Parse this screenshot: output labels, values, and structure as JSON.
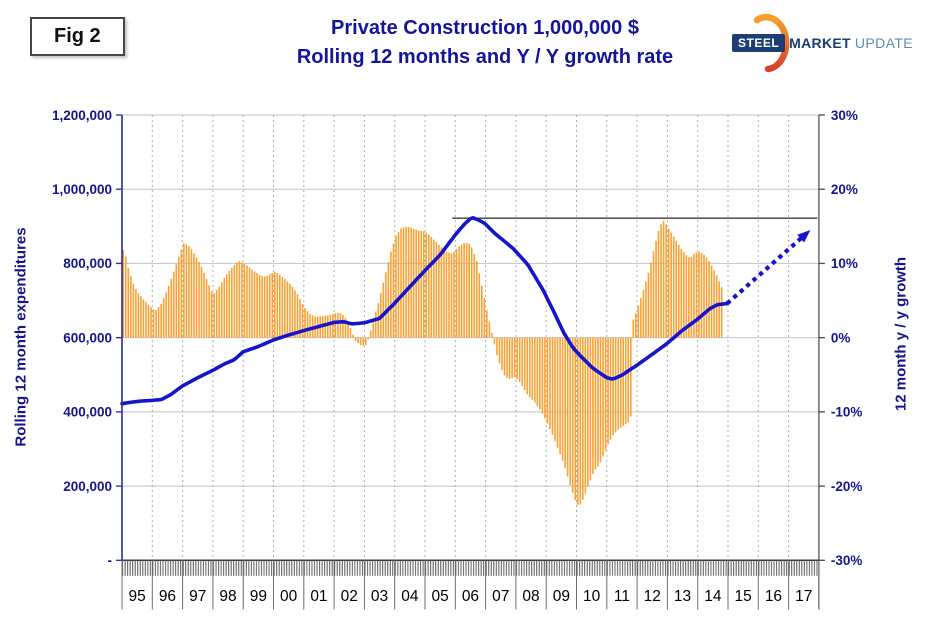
{
  "figure_label": "Fig 2",
  "header": {
    "title_line1": "Private Construction 1,000,000 $",
    "title_line2": "Rolling 12 months and Y / Y growth rate"
  },
  "logo": {
    "steel": "STEEL",
    "market": "MARKET",
    "update": "UPDATE"
  },
  "chart_data": {
    "type": "bar",
    "subtype": "monthly bars (y/y growth, right axis) + rolling-12-month line (left axis) + dotted projection arrow",
    "title": "Private Construction 1,000,000 $ — Rolling 12 months and Y / Y growth rate",
    "left_axis": {
      "label": "Rolling 12 month expenditures",
      "tick_labels": [
        "1,200,000",
        "1,000,000",
        "800,000",
        "600,000",
        "400,000",
        "200,000",
        "-"
      ],
      "tick_values": [
        1200000,
        1000000,
        800000,
        600000,
        400000,
        200000,
        0
      ],
      "range": [
        0,
        1200000
      ],
      "gridlines": true
    },
    "right_axis": {
      "label": "12 month y / y growth",
      "tick_labels": [
        "30%",
        "20%",
        "10%",
        "0%",
        "-10%",
        "-20%",
        "-30%"
      ],
      "tick_values": [
        30,
        20,
        10,
        0,
        -10,
        -20,
        -30
      ],
      "range": [
        -30,
        30
      ]
    },
    "x_axis": {
      "year_labels": [
        "95",
        "96",
        "97",
        "98",
        "99",
        "00",
        "01",
        "02",
        "03",
        "04",
        "05",
        "06",
        "07",
        "08",
        "09",
        "10",
        "11",
        "12",
        "13",
        "14",
        "15",
        "16",
        "17"
      ],
      "range_years": [
        1995,
        2018
      ],
      "monthly_minor_ticks": true,
      "yearly_dashed_gridlines": true
    },
    "series": {
      "yoy_growth_bars": {
        "name": "Y / Y growth rate",
        "type": "bar",
        "axis": "right",
        "unit": "%",
        "color": "#F8A234",
        "note": "monthly bars Jan-1995 through late-2014; values interpolated from anchor_points [year, percent]",
        "anchor_points": [
          [
            1995.04,
            11.8
          ],
          [
            1995.1,
            11.4
          ],
          [
            1995.2,
            9.5
          ],
          [
            1995.35,
            7.5
          ],
          [
            1995.5,
            6.2
          ],
          [
            1995.7,
            5.2
          ],
          [
            1995.9,
            4.3
          ],
          [
            1996.1,
            3.6
          ],
          [
            1996.3,
            4.6
          ],
          [
            1996.5,
            6.5
          ],
          [
            1996.7,
            8.8
          ],
          [
            1996.9,
            11.2
          ],
          [
            1997.05,
            12.8
          ],
          [
            1997.25,
            12.2
          ],
          [
            1997.4,
            11.2
          ],
          [
            1997.6,
            9.8
          ],
          [
            1997.8,
            7.8
          ],
          [
            1998.0,
            5.8
          ],
          [
            1998.2,
            6.8
          ],
          [
            1998.4,
            8.2
          ],
          [
            1998.6,
            9.3
          ],
          [
            1998.85,
            10.4
          ],
          [
            1999.1,
            9.8
          ],
          [
            1999.35,
            9.0
          ],
          [
            1999.6,
            8.3
          ],
          [
            1999.75,
            8.2
          ],
          [
            1999.9,
            8.6
          ],
          [
            2000.05,
            8.9
          ],
          [
            2000.2,
            8.5
          ],
          [
            2000.4,
            7.8
          ],
          [
            2000.6,
            7.0
          ],
          [
            2000.8,
            5.8
          ],
          [
            2001.0,
            4.2
          ],
          [
            2001.2,
            3.2
          ],
          [
            2001.4,
            2.8
          ],
          [
            2001.6,
            2.9
          ],
          [
            2001.8,
            3.0
          ],
          [
            2002.0,
            3.3
          ],
          [
            2002.25,
            3.3
          ],
          [
            2002.4,
            2.5
          ],
          [
            2002.55,
            1.2
          ],
          [
            2002.7,
            -0.4
          ],
          [
            2002.9,
            -1.1
          ],
          [
            2003.05,
            -1.0
          ],
          [
            2003.15,
            0.0
          ],
          [
            2003.3,
            2.5
          ],
          [
            2003.45,
            4.5
          ],
          [
            2003.6,
            7.0
          ],
          [
            2003.75,
            9.5
          ],
          [
            2003.9,
            12.0
          ],
          [
            2004.05,
            13.8
          ],
          [
            2004.2,
            14.7
          ],
          [
            2004.4,
            15.0
          ],
          [
            2004.6,
            14.7
          ],
          [
            2004.8,
            14.4
          ],
          [
            2005.0,
            14.3
          ],
          [
            2005.15,
            13.8
          ],
          [
            2005.3,
            13.2
          ],
          [
            2005.5,
            12.3
          ],
          [
            2005.7,
            11.6
          ],
          [
            2005.9,
            11.3
          ],
          [
            2006.1,
            12.2
          ],
          [
            2006.3,
            12.8
          ],
          [
            2006.5,
            12.6
          ],
          [
            2006.7,
            10.5
          ],
          [
            2006.9,
            6.5
          ],
          [
            2007.05,
            3.5
          ],
          [
            2007.2,
            0.8
          ],
          [
            2007.35,
            -2.0
          ],
          [
            2007.5,
            -4.0
          ],
          [
            2007.65,
            -5.3
          ],
          [
            2007.8,
            -5.6
          ],
          [
            2007.95,
            -5.3
          ],
          [
            2008.1,
            -5.8
          ],
          [
            2008.25,
            -6.8
          ],
          [
            2008.4,
            -7.8
          ],
          [
            2008.6,
            -8.6
          ],
          [
            2008.8,
            -9.7
          ],
          [
            2009.0,
            -11.2
          ],
          [
            2009.2,
            -13.0
          ],
          [
            2009.4,
            -15.1
          ],
          [
            2009.6,
            -17.2
          ],
          [
            2009.8,
            -20.0
          ],
          [
            2010.0,
            -22.4
          ],
          [
            2010.1,
            -22.7
          ],
          [
            2010.25,
            -21.5
          ],
          [
            2010.4,
            -19.8
          ],
          [
            2010.6,
            -17.8
          ],
          [
            2010.75,
            -17.2
          ],
          [
            2010.9,
            -15.8
          ],
          [
            2011.05,
            -14.3
          ],
          [
            2011.2,
            -13.2
          ],
          [
            2011.35,
            -12.5
          ],
          [
            2011.5,
            -12.0
          ],
          [
            2011.65,
            -11.6
          ],
          [
            2011.79,
            -11.2
          ],
          [
            2011.83,
            2.0
          ],
          [
            2011.95,
            3.2
          ],
          [
            2012.1,
            5.0
          ],
          [
            2012.25,
            7.0
          ],
          [
            2012.4,
            9.1
          ],
          [
            2012.55,
            11.8
          ],
          [
            2012.7,
            14.3
          ],
          [
            2012.85,
            15.9
          ],
          [
            2013.0,
            15.0
          ],
          [
            2013.15,
            14.0
          ],
          [
            2013.3,
            13.0
          ],
          [
            2013.45,
            12.0
          ],
          [
            2013.6,
            11.2
          ],
          [
            2013.75,
            10.7
          ],
          [
            2013.9,
            11.4
          ],
          [
            2014.05,
            11.6
          ],
          [
            2014.2,
            11.2
          ],
          [
            2014.35,
            10.5
          ],
          [
            2014.5,
            9.4
          ],
          [
            2014.65,
            8.2
          ],
          [
            2014.79,
            6.8
          ]
        ]
      },
      "expenditures_line": {
        "name": "Rolling 12 month expenditures",
        "type": "line",
        "axis": "left",
        "unit": "$1,000",
        "color": "#1515CC",
        "anchor_points": [
          [
            1995.0,
            422000
          ],
          [
            1995.3,
            426000
          ],
          [
            1995.6,
            429000
          ],
          [
            1996.0,
            431000
          ],
          [
            1996.3,
            433000
          ],
          [
            1996.6,
            446000
          ],
          [
            1997.0,
            470000
          ],
          [
            1997.5,
            492000
          ],
          [
            1998.0,
            512000
          ],
          [
            1998.4,
            530000
          ],
          [
            1998.7,
            540000
          ],
          [
            1999.0,
            562000
          ],
          [
            1999.5,
            576000
          ],
          [
            2000.0,
            594000
          ],
          [
            2000.5,
            607000
          ],
          [
            2001.0,
            619000
          ],
          [
            2001.5,
            630000
          ],
          [
            2002.0,
            641000
          ],
          [
            2002.3,
            643000
          ],
          [
            2002.6,
            637000
          ],
          [
            2003.0,
            640000
          ],
          [
            2003.5,
            652000
          ],
          [
            2004.0,
            693000
          ],
          [
            2004.5,
            737000
          ],
          [
            2005.0,
            781000
          ],
          [
            2005.5,
            823000
          ],
          [
            2006.0,
            877000
          ],
          [
            2006.3,
            906000
          ],
          [
            2006.55,
            924000
          ],
          [
            2006.8,
            916000
          ],
          [
            2007.0,
            906000
          ],
          [
            2007.3,
            881000
          ],
          [
            2007.9,
            841000
          ],
          [
            2008.4,
            796000
          ],
          [
            2008.9,
            728000
          ],
          [
            2009.25,
            670000
          ],
          [
            2009.6,
            610000
          ],
          [
            2009.9,
            571000
          ],
          [
            2010.2,
            545000
          ],
          [
            2010.55,
            517000
          ],
          [
            2011.0,
            492000
          ],
          [
            2011.2,
            488000
          ],
          [
            2011.5,
            499000
          ],
          [
            2012.0,
            526000
          ],
          [
            2012.5,
            555000
          ],
          [
            2013.0,
            585000
          ],
          [
            2013.5,
            620000
          ],
          [
            2014.0,
            650000
          ],
          [
            2014.4,
            678000
          ],
          [
            2014.65,
            689000
          ],
          [
            2014.97,
            692000
          ]
        ]
      },
      "projection_arrow": {
        "name": "projected growth (dotted arrow)",
        "type": "dotted-arrow",
        "axis": "left",
        "color": "#1515CC",
        "from": [
          2014.97,
          692000
        ],
        "to": [
          2017.72,
          890000
        ]
      },
      "reference_line": {
        "name": "prior-peak reference line",
        "type": "horizontal-line",
        "axis": "right",
        "value_pct": 16.1,
        "x_from": 2005.9,
        "x_to": 2017.95,
        "color": "#3C3C3C"
      }
    },
    "colors": {
      "bars": "#F8A234",
      "line": "#1515CC",
      "navy_text": "#15158F",
      "grid_horizontal": "#C3C3C3",
      "grid_vertical_dashed": "#ADADAD",
      "axis_gray": "#4A4A4A",
      "year_labels": "#000000"
    }
  }
}
